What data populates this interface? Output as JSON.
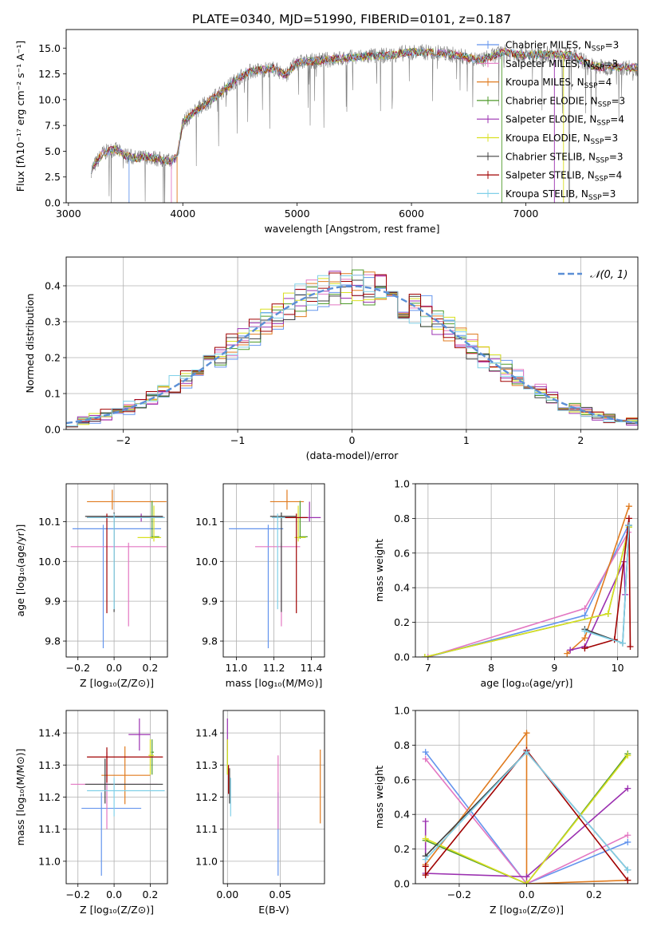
{
  "title": "PLATE=0340, MJD=51990, FIBERID=0101, z=0.187",
  "colors": {
    "Chabrier MILES": "#6495ed",
    "Salpeter MILES": "#e377c2",
    "Kroupa MILES": "#e07b1f",
    "Chabrier ELODIE": "#4e9a2a",
    "Salpeter ELODIE": "#9b30b0",
    "Kroupa ELODIE": "#d9e021",
    "Chabrier STELIB": "#404040",
    "Salpeter STELIB": "#a00000",
    "Kroupa STELIB": "#80d0e8",
    "data": "#808080",
    "gauss": "#5b8fd6"
  },
  "chart_data": [
    {
      "id": "spectrum",
      "type": "line",
      "xlabel": "wavelength [Angstrom, rest frame]",
      "ylabel": "Flux [fλ10⁻¹⁷ erg cm⁻² s⁻¹ A⁻¹]",
      "xlim": [
        2980,
        7980
      ],
      "ylim": [
        0,
        16.8
      ],
      "xticks": [
        3000,
        4000,
        5000,
        6000,
        7000
      ],
      "yticks": [
        0.0,
        2.5,
        5.0,
        7.5,
        10.0,
        12.5,
        15.0
      ],
      "legend": [
        {
          "name": "Chabrier MILES",
          "nssp": "3"
        },
        {
          "name": "Salpeter MILES",
          "nssp": "3"
        },
        {
          "name": "Kroupa MILES",
          "nssp": "4"
        },
        {
          "name": "Chabrier ELODIE",
          "nssp": "3"
        },
        {
          "name": "Salpeter ELODIE",
          "nssp": "4"
        },
        {
          "name": "Kroupa ELODIE",
          "nssp": "3"
        },
        {
          "name": "Chabrier STELIB",
          "nssp": "3"
        },
        {
          "name": "Salpeter STELIB",
          "nssp": "4"
        },
        {
          "name": "Kroupa STELIB",
          "nssp": "3"
        }
      ],
      "continuum_x": [
        3200,
        3300,
        3400,
        3500,
        3600,
        3700,
        3800,
        3900,
        3950,
        4000,
        4100,
        4200,
        4300,
        4400,
        4500,
        4600,
        4700,
        4800,
        4900,
        5000,
        5200,
        5400,
        5600,
        5800,
        6000,
        6200,
        6400,
        6600,
        6800,
        7000,
        7200,
        7400,
        7600,
        7980
      ],
      "continuum_y": [
        3.2,
        4.8,
        5.2,
        4.6,
        4.3,
        4.5,
        4.2,
        4.0,
        4.5,
        7.8,
        8.8,
        9.6,
        10.4,
        11.3,
        12.2,
        12.8,
        12.9,
        13.0,
        12.4,
        13.6,
        13.8,
        14.0,
        14.2,
        14.3,
        14.6,
        14.6,
        14.3,
        13.8,
        14.6,
        14.3,
        14.4,
        14.3,
        13.2,
        13.1
      ]
    },
    {
      "id": "residuals",
      "type": "step",
      "xlabel": "(data-model)/error",
      "ylabel": "Normed distribution",
      "xlim": [
        -2.5,
        2.5
      ],
      "ylim": [
        0,
        0.48
      ],
      "xticks": [
        -2,
        -1,
        0,
        1,
        2
      ],
      "xtick_labels": [
        "−2",
        "−1",
        "0",
        "1",
        "2"
      ],
      "yticks": [
        0.0,
        0.1,
        0.2,
        0.3,
        0.4
      ],
      "legend_label": "𝒩(0, 1)",
      "gauss_mu": 0,
      "gauss_sigma": 1
    },
    {
      "id": "age-vs-Z",
      "type": "errorbar",
      "xlabel": "Z [log₁₀(Z/Z⊙)]",
      "ylabel": "age  [log₁₀(age/yr)]",
      "xlim": [
        -0.265,
        0.295
      ],
      "ylim": [
        9.76,
        10.195
      ],
      "xticks": [
        -0.2,
        0.0,
        0.2
      ],
      "xtick_labels": [
        "−0.2",
        "0.0",
        "0.2"
      ],
      "yticks": [
        9.8,
        9.9,
        10.0,
        10.1
      ],
      "points": [
        {
          "model": "Chabrier MILES",
          "x": -0.06,
          "y": 10.082,
          "xerr": [
            0.17,
            0.32
          ],
          "yerr": [
            0.3,
            0.01
          ]
        },
        {
          "model": "Salpeter MILES",
          "x": 0.08,
          "y": 10.037,
          "xerr": [
            0.32,
            0.21
          ],
          "yerr": [
            0.2,
            0.01
          ]
        },
        {
          "model": "Kroupa MILES",
          "x": -0.01,
          "y": 10.15,
          "xerr": [
            0.14,
            0.3
          ],
          "yerr": [
            0.02,
            0.03
          ]
        },
        {
          "model": "Chabrier ELODIE",
          "x": 0.21,
          "y": 10.062,
          "xerr": [
            0.005,
            0.04
          ],
          "yerr": [
            0.005,
            0.09
          ]
        },
        {
          "model": "Salpeter ELODIE",
          "x": 0.15,
          "y": 10.11,
          "xerr": [
            0.22,
            0.12
          ],
          "yerr": [
            0.01,
            0.01
          ]
        },
        {
          "model": "Kroupa ELODIE",
          "x": 0.22,
          "y": 10.06,
          "xerr": [
            0.09,
            0.04
          ],
          "yerr": [
            0.01,
            0.08
          ]
        },
        {
          "model": "Chabrier STELIB",
          "x": 0.0,
          "y": 10.113,
          "xerr": [
            0.16,
            0.27
          ],
          "yerr": [
            0.24,
            0.01
          ]
        },
        {
          "model": "Salpeter STELIB",
          "x": -0.04,
          "y": 10.11,
          "xerr": [
            0.11,
            0.32
          ],
          "yerr": [
            0.24,
            0.01
          ]
        },
        {
          "model": "Kroupa STELIB",
          "x": 0.0,
          "y": 10.11,
          "xerr": [
            0.15,
            0.28
          ],
          "yerr": [
            0.23,
            0.01
          ]
        }
      ]
    },
    {
      "id": "age-vs-mass",
      "type": "errorbar",
      "xlabel": "mass [log₁₀(M/M⊙)]",
      "ylabel": "",
      "xlim": [
        10.93,
        11.47
      ],
      "ylim": [
        9.76,
        10.195
      ],
      "xticks": [
        11.0,
        11.2,
        11.4
      ],
      "xtick_labels": [
        "11.0",
        "11.2",
        "11.4"
      ],
      "yticks": [
        9.8,
        9.9,
        10.0,
        10.1
      ],
      "points": [
        {
          "model": "Chabrier MILES",
          "x": 11.17,
          "y": 10.082,
          "xerr": [
            0.21,
            0.08
          ],
          "yerr": [
            0.3,
            0.01
          ]
        },
        {
          "model": "Salpeter MILES",
          "x": 11.24,
          "y": 10.037,
          "xerr": [
            0.14,
            0.1
          ],
          "yerr": [
            0.2,
            0.01
          ]
        },
        {
          "model": "Kroupa MILES",
          "x": 11.27,
          "y": 10.15,
          "xerr": [
            0.09,
            0.09
          ],
          "yerr": [
            0.02,
            0.03
          ]
        },
        {
          "model": "Chabrier ELODIE",
          "x": 11.34,
          "y": 10.062,
          "xerr": [
            0.005,
            0.04
          ],
          "yerr": [
            0.005,
            0.09
          ]
        },
        {
          "model": "Salpeter ELODIE",
          "x": 11.39,
          "y": 10.11,
          "xerr": [
            0.05,
            0.06
          ],
          "yerr": [
            0.01,
            0.04
          ]
        },
        {
          "model": "Kroupa ELODIE",
          "x": 11.33,
          "y": 10.06,
          "xerr": [
            0.02,
            0.04
          ],
          "yerr": [
            0.01,
            0.08
          ]
        },
        {
          "model": "Chabrier STELIB",
          "x": 11.24,
          "y": 10.113,
          "xerr": [
            0.06,
            0.08
          ],
          "yerr": [
            0.24,
            0.01
          ]
        },
        {
          "model": "Salpeter STELIB",
          "x": 11.32,
          "y": 10.11,
          "xerr": [
            0.08,
            0.06
          ],
          "yerr": [
            0.24,
            0.01
          ]
        },
        {
          "model": "Kroupa STELIB",
          "x": 11.22,
          "y": 10.11,
          "xerr": [
            0.03,
            0.04
          ],
          "yerr": [
            0.23,
            0.01
          ]
        }
      ]
    },
    {
      "id": "weight-vs-age",
      "type": "line",
      "xlabel": "age  [log₁₀(age/yr)]",
      "ylabel": "mass weight",
      "xlim": [
        6.8,
        10.32
      ],
      "ylim": [
        0,
        1.0
      ],
      "xticks": [
        7,
        8,
        9,
        10
      ],
      "yticks": [
        0.0,
        0.2,
        0.4,
        0.6,
        0.8,
        1.0
      ],
      "series": [
        {
          "model": "Chabrier MILES",
          "x": [
            7.0,
            9.48,
            10.17
          ],
          "y": [
            0.0,
            0.24,
            0.76
          ]
        },
        {
          "model": "Salpeter MILES",
          "x": [
            7.0,
            9.48,
            10.17
          ],
          "y": [
            0.0,
            0.28,
            0.72
          ]
        },
        {
          "model": "Kroupa MILES",
          "x": [
            9.2,
            9.48,
            10.18
          ],
          "y": [
            0.02,
            0.11,
            0.87
          ]
        },
        {
          "model": "Chabrier ELODIE",
          "x": [
            6.95,
            9.85,
            10.18
          ],
          "y": [
            0.0,
            0.25,
            0.75
          ]
        },
        {
          "model": "Salpeter ELODIE",
          "x": [
            9.25,
            9.48,
            10.1,
            10.12
          ],
          "y": [
            0.04,
            0.06,
            0.55,
            0.36
          ]
        },
        {
          "model": "Kroupa ELODIE",
          "x": [
            6.95,
            9.85,
            10.18
          ],
          "y": [
            0.0,
            0.25,
            0.75
          ]
        },
        {
          "model": "Chabrier STELIB",
          "x": [
            9.48,
            10.08,
            10.18
          ],
          "y": [
            0.16,
            0.08,
            0.76
          ]
        },
        {
          "model": "Salpeter STELIB",
          "x": [
            9.48,
            9.95,
            10.18,
            10.2
          ],
          "y": [
            0.05,
            0.1,
            0.8,
            0.06
          ]
        },
        {
          "model": "Kroupa STELIB",
          "x": [
            9.48,
            10.08,
            10.18
          ],
          "y": [
            0.15,
            0.08,
            0.76
          ]
        }
      ]
    },
    {
      "id": "mass-vs-Z",
      "type": "errorbar",
      "xlabel": "Z [log₁₀(Z/Z⊙)]",
      "ylabel": "mass [log₁₀(M/M⊙)]",
      "xlim": [
        -0.265,
        0.295
      ],
      "ylim": [
        10.93,
        11.47
      ],
      "xticks": [
        -0.2,
        0.0,
        0.2
      ],
      "xtick_labels": [
        "−0.2",
        "0.0",
        "0.2"
      ],
      "yticks": [
        11.0,
        11.1,
        11.2,
        11.3,
        11.4
      ],
      "points": [
        {
          "model": "Chabrier MILES",
          "x": -0.07,
          "y": 11.165,
          "xerr": [
            0.11,
            0.22
          ],
          "yerr": [
            0.21,
            0.05
          ]
        },
        {
          "model": "Salpeter MILES",
          "x": -0.04,
          "y": 11.24,
          "xerr": [
            0.2,
            0.28
          ],
          "yerr": [
            0.14,
            0.1
          ]
        },
        {
          "model": "Kroupa MILES",
          "x": 0.06,
          "y": 11.268,
          "xerr": [
            0.13,
            0.14
          ],
          "yerr": [
            0.09,
            0.09
          ]
        },
        {
          "model": "Chabrier ELODIE",
          "x": 0.21,
          "y": 11.34,
          "xerr": [
            0.005,
            0.01
          ],
          "yerr": [
            0.07,
            0.04
          ]
        },
        {
          "model": "Salpeter ELODIE",
          "x": 0.14,
          "y": 11.395,
          "xerr": [
            0.06,
            0.06
          ],
          "yerr": [
            0.05,
            0.05
          ]
        },
        {
          "model": "Kroupa ELODIE",
          "x": 0.2,
          "y": 11.33,
          "xerr": [
            0.01,
            0.02
          ],
          "yerr": [
            0.06,
            0.05
          ]
        },
        {
          "model": "Chabrier STELIB",
          "x": -0.05,
          "y": 11.24,
          "xerr": [
            0.11,
            0.32
          ],
          "yerr": [
            0.06,
            0.08
          ]
        },
        {
          "model": "Salpeter STELIB",
          "x": -0.04,
          "y": 11.325,
          "xerr": [
            0.11,
            0.31
          ],
          "yerr": [
            0.08,
            0.03
          ]
        },
        {
          "model": "Kroupa STELIB",
          "x": 0.0,
          "y": 11.22,
          "xerr": [
            0.15,
            0.28
          ],
          "yerr": [
            0.08,
            0.04
          ]
        }
      ]
    },
    {
      "id": "mass-vs-ebv",
      "type": "errorbar",
      "xlabel": "E(B-V)",
      "ylabel": "",
      "xlim": [
        -0.004,
        0.092
      ],
      "ylim": [
        10.93,
        11.47
      ],
      "xticks": [
        0.0,
        0.05
      ],
      "xtick_labels": [
        "0.00",
        "0.05"
      ],
      "yticks": [
        11.0,
        11.1,
        11.2,
        11.3,
        11.4
      ],
      "points": [
        {
          "model": "Chabrier MILES",
          "x": 0.048,
          "y": 11.165,
          "xerr": [
            0,
            0
          ],
          "yerr": [
            0.21,
            0.05
          ]
        },
        {
          "model": "Salpeter MILES",
          "x": 0.048,
          "y": 11.24,
          "xerr": [
            0,
            0
          ],
          "yerr": [
            0.14,
            0.09
          ]
        },
        {
          "model": "Kroupa MILES",
          "x": 0.088,
          "y": 11.268,
          "xerr": [
            0,
            0
          ],
          "yerr": [
            0.15,
            0.08
          ]
        },
        {
          "model": "Chabrier ELODIE",
          "x": 0.0,
          "y": 11.34,
          "xerr": [
            0,
            0
          ],
          "yerr": [
            0.07,
            0.04
          ]
        },
        {
          "model": "Salpeter ELODIE",
          "x": 0.0,
          "y": 11.395,
          "xerr": [
            0,
            0
          ],
          "yerr": [
            0.05,
            0.05
          ]
        },
        {
          "model": "Kroupa ELODIE",
          "x": 0.0,
          "y": 11.33,
          "xerr": [
            0,
            0
          ],
          "yerr": [
            0.06,
            0.05
          ]
        },
        {
          "model": "Chabrier STELIB",
          "x": 0.002,
          "y": 11.24,
          "xerr": [
            0,
            0
          ],
          "yerr": [
            0.06,
            0.05
          ]
        },
        {
          "model": "Salpeter STELIB",
          "x": 0.001,
          "y": 11.27,
          "xerr": [
            0,
            0
          ],
          "yerr": [
            0.06,
            0.03
          ]
        },
        {
          "model": "Kroupa STELIB",
          "x": 0.003,
          "y": 11.22,
          "xerr": [
            0,
            0
          ],
          "yerr": [
            0.08,
            0.04
          ]
        }
      ]
    },
    {
      "id": "weight-vs-Z",
      "type": "line",
      "xlabel": "Z [log₁₀(Z/Z⊙)]",
      "ylabel": "mass weight",
      "xlim": [
        -0.33,
        0.33
      ],
      "ylim": [
        0,
        1.0
      ],
      "xticks": [
        -0.2,
        0.0,
        0.2
      ],
      "xtick_labels": [
        "−0.2",
        "0.0",
        "0.2"
      ],
      "yticks": [
        0.0,
        0.2,
        0.4,
        0.6,
        0.8,
        1.0
      ],
      "series": [
        {
          "model": "Chabrier MILES",
          "x": [
            -0.3,
            0.0,
            0.3
          ],
          "y": [
            0.76,
            0.0,
            0.24
          ]
        },
        {
          "model": "Salpeter MILES",
          "x": [
            -0.3,
            0.0,
            0.3
          ],
          "y": [
            0.72,
            0.0,
            0.28
          ]
        },
        {
          "model": "Kroupa MILES",
          "x": [
            -0.3,
            0.0,
            0.0,
            0.3
          ],
          "y": [
            0.11,
            0.87,
            0.0,
            0.02
          ]
        },
        {
          "model": "Chabrier ELODIE",
          "x": [
            -0.3,
            0.0,
            0.3
          ],
          "y": [
            0.25,
            0.0,
            0.75
          ]
        },
        {
          "model": "Salpeter ELODIE",
          "x": [
            -0.3,
            -0.3,
            0.0,
            0.3
          ],
          "y": [
            0.36,
            0.06,
            0.04,
            0.55
          ]
        },
        {
          "model": "Kroupa ELODIE",
          "x": [
            -0.3,
            0.0,
            0.3
          ],
          "y": [
            0.26,
            0.0,
            0.74
          ]
        },
        {
          "model": "Chabrier STELIB",
          "x": [
            -0.3,
            0.0,
            0.3
          ],
          "y": [
            0.16,
            0.76,
            0.08
          ]
        },
        {
          "model": "Salpeter STELIB",
          "x": [
            -0.3,
            -0.3,
            0.0,
            0.3
          ],
          "y": [
            0.1,
            0.05,
            0.77,
            0.02
          ]
        },
        {
          "model": "Kroupa STELIB",
          "x": [
            -0.3,
            0.0,
            0.3
          ],
          "y": [
            0.14,
            0.76,
            0.08
          ]
        }
      ]
    }
  ]
}
